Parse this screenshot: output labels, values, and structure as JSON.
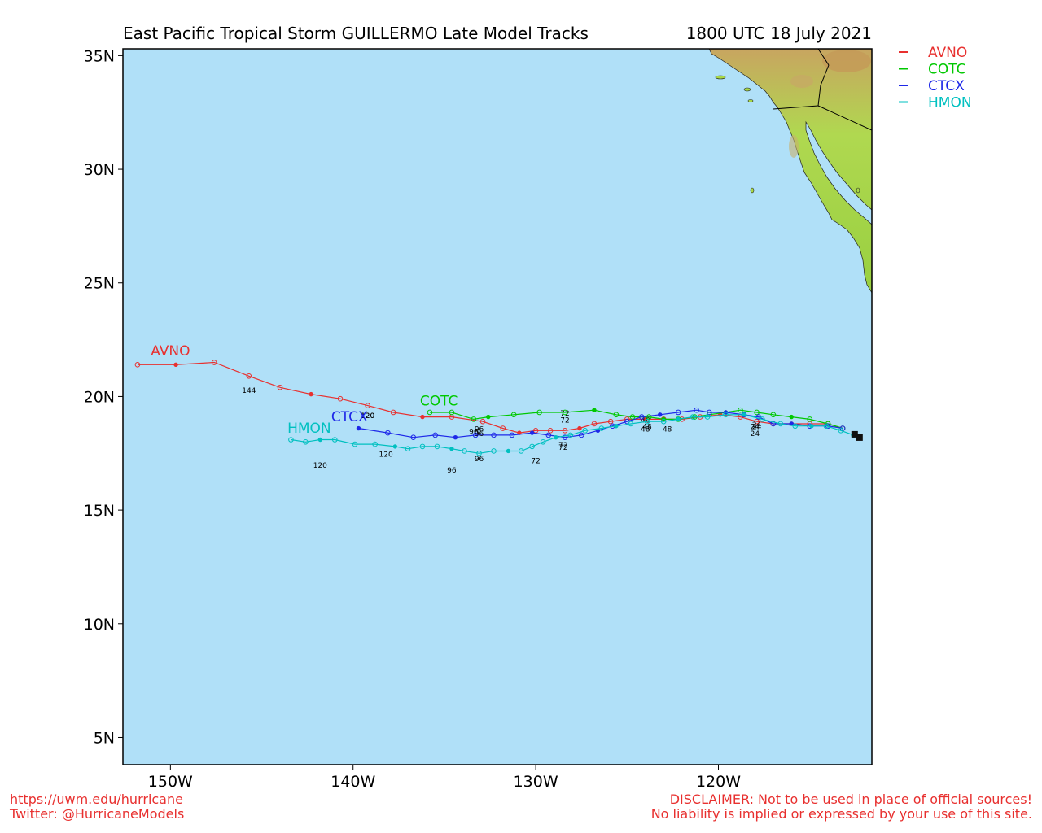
{
  "header": {
    "title": "East Pacific Tropical Storm GUILLERMO Late Model Tracks",
    "timestamp": "1800 UTC 18 July 2021"
  },
  "footer": {
    "url": "https://uwm.edu/hurricane",
    "twitter": "Twitter: @HurricaneModels",
    "disclaimer_1": "DISCLAIMER: Not to be used in place of official sources!",
    "disclaimer_2": "No liability is implied or expressed by your use of this site."
  },
  "colors": {
    "ocean": "#b0e0f8",
    "land_low": "#a0d840",
    "land_high": "#b89850",
    "avno": "#e8302f",
    "cotc": "#00c800",
    "ctcx": "#1e28e8",
    "hmon": "#00c0c0",
    "footer_text": "#e8302f"
  },
  "map": {
    "lon_range": [
      -152.6,
      -111.6
    ],
    "lat_range": [
      3.8,
      35.3
    ],
    "lon_ticks": [
      {
        "value": -150,
        "label": "150W"
      },
      {
        "value": -140,
        "label": "140W"
      },
      {
        "value": -130,
        "label": "130W"
      },
      {
        "value": -120,
        "label": "120W"
      }
    ],
    "lat_ticks": [
      {
        "value": 35,
        "label": "35N"
      },
      {
        "value": 30,
        "label": "30N"
      },
      {
        "value": 25,
        "label": "25N"
      },
      {
        "value": 20,
        "label": "20N"
      },
      {
        "value": 15,
        "label": "15N"
      },
      {
        "value": 10,
        "label": "10N"
      },
      {
        "value": 5,
        "label": "5N"
      }
    ],
    "initial_position": {
      "lon": -112.5,
      "lat": 18.3
    }
  },
  "legend": [
    {
      "name": "AVNO",
      "color": "#e8302f"
    },
    {
      "name": "COTC",
      "color": "#00c800"
    },
    {
      "name": "CTCX",
      "color": "#1e28e8"
    },
    {
      "name": "HMON",
      "color": "#00c0c0"
    }
  ],
  "tracks": [
    {
      "name": "AVNO",
      "color": "#e8302f",
      "points": [
        [
          -113.2,
          18.6
        ],
        [
          -114.0,
          18.8
        ],
        [
          -115.0,
          18.8
        ],
        [
          -116.0,
          18.8
        ],
        [
          -117.0,
          18.8
        ],
        [
          -117.9,
          18.9
        ],
        [
          -118.8,
          19.1
        ],
        [
          -119.9,
          19.2
        ],
        [
          -121.0,
          19.1
        ],
        [
          -122.0,
          19.0
        ],
        [
          -123.0,
          19.0
        ],
        [
          -124.0,
          19.0
        ],
        [
          -125.0,
          19.0
        ],
        [
          -125.9,
          18.9
        ],
        [
          -126.8,
          18.8
        ],
        [
          -127.6,
          18.6
        ],
        [
          -128.4,
          18.5
        ],
        [
          -129.2,
          18.5
        ],
        [
          -130.0,
          18.5
        ],
        [
          -130.9,
          18.4
        ],
        [
          -131.8,
          18.6
        ],
        [
          -132.9,
          18.9
        ],
        [
          -134.6,
          19.1
        ],
        [
          -136.2,
          19.1
        ],
        [
          -137.8,
          19.3
        ],
        [
          -139.2,
          19.6
        ],
        [
          -140.7,
          19.9
        ],
        [
          -142.3,
          20.1
        ],
        [
          -144.0,
          20.4
        ],
        [
          -145.7,
          20.9
        ],
        [
          -147.6,
          21.5
        ],
        [
          -149.7,
          21.4
        ],
        [
          -151.8,
          21.4
        ]
      ],
      "labels": [
        {
          "text": "24",
          "lon": -117.9,
          "lat": 18.8
        },
        {
          "text": "48",
          "lon": -124.0,
          "lat": 19.0
        },
        {
          "text": "72",
          "lon": -128.4,
          "lat": 19.3
        },
        {
          "text": "96",
          "lon": -133.1,
          "lat": 18.6
        },
        {
          "text": "120",
          "lon": -139.2,
          "lat": 19.2
        },
        {
          "text": "144",
          "lon": -145.7,
          "lat": 20.3
        }
      ],
      "model_label": {
        "text": "AVNO",
        "lon": -150.0,
        "lat": 21.8
      }
    },
    {
      "name": "COTC",
      "color": "#00c800",
      "points": [
        [
          -113.2,
          18.6
        ],
        [
          -114.0,
          18.8
        ],
        [
          -115.0,
          19.0
        ],
        [
          -116.0,
          19.1
        ],
        [
          -117.0,
          19.2
        ],
        [
          -117.9,
          19.3
        ],
        [
          -118.8,
          19.4
        ],
        [
          -119.6,
          19.3
        ],
        [
          -120.5,
          19.2
        ],
        [
          -121.3,
          19.1
        ],
        [
          -122.2,
          19.0
        ],
        [
          -123.0,
          19.0
        ],
        [
          -123.8,
          19.1
        ],
        [
          -124.7,
          19.1
        ],
        [
          -125.6,
          19.2
        ],
        [
          -126.8,
          19.4
        ],
        [
          -128.4,
          19.3
        ],
        [
          -129.8,
          19.3
        ],
        [
          -131.2,
          19.2
        ],
        [
          -132.6,
          19.1
        ],
        [
          -133.4,
          19.0
        ],
        [
          -134.6,
          19.3
        ],
        [
          -135.8,
          19.3
        ]
      ],
      "labels": [
        {
          "text": "24",
          "lon": -117.9,
          "lat": 18.7
        },
        {
          "text": "48",
          "lon": -122.8,
          "lat": 18.6
        },
        {
          "text": "72",
          "lon": -128.4,
          "lat": 19.0
        },
        {
          "text": "96",
          "lon": -133.4,
          "lat": 18.5
        }
      ],
      "model_label": {
        "text": "COTC",
        "lon": -135.3,
        "lat": 19.6
      }
    },
    {
      "name": "CTCX",
      "color": "#1e28e8",
      "points": [
        [
          -113.2,
          18.6
        ],
        [
          -114.0,
          18.7
        ],
        [
          -115.0,
          18.7
        ],
        [
          -116.0,
          18.8
        ],
        [
          -117.0,
          18.8
        ],
        [
          -117.8,
          19.1
        ],
        [
          -118.6,
          19.2
        ],
        [
          -119.6,
          19.3
        ],
        [
          -120.5,
          19.3
        ],
        [
          -121.2,
          19.4
        ],
        [
          -122.2,
          19.3
        ],
        [
          -123.2,
          19.2
        ],
        [
          -124.2,
          19.1
        ],
        [
          -125.0,
          18.9
        ],
        [
          -125.8,
          18.7
        ],
        [
          -126.6,
          18.5
        ],
        [
          -127.5,
          18.3
        ],
        [
          -128.4,
          18.2
        ],
        [
          -129.3,
          18.3
        ],
        [
          -130.2,
          18.4
        ],
        [
          -131.3,
          18.3
        ],
        [
          -132.3,
          18.3
        ],
        [
          -133.3,
          18.3
        ],
        [
          -134.4,
          18.2
        ],
        [
          -135.5,
          18.3
        ],
        [
          -136.7,
          18.2
        ],
        [
          -138.1,
          18.4
        ],
        [
          -139.7,
          18.6
        ]
      ],
      "labels": [
        {
          "text": "24",
          "lon": -118.0,
          "lat": 18.7
        },
        {
          "text": "48",
          "lon": -123.9,
          "lat": 18.7
        },
        {
          "text": "72",
          "lon": -128.5,
          "lat": 17.9
        },
        {
          "text": "96",
          "lon": -133.1,
          "lat": 18.4
        },
        {
          "text": "120",
          "lon": -139.2,
          "lat": 19.2
        }
      ],
      "model_label": {
        "text": "CTCX",
        "lon": -140.2,
        "lat": 18.9
      }
    },
    {
      "name": "HMON",
      "color": "#00c0c0",
      "points": [
        [
          -112.6,
          18.3
        ],
        [
          -113.3,
          18.5
        ],
        [
          -114.1,
          18.7
        ],
        [
          -114.9,
          18.7
        ],
        [
          -115.8,
          18.7
        ],
        [
          -116.6,
          18.8
        ],
        [
          -117.6,
          19.0
        ],
        [
          -118.6,
          19.2
        ],
        [
          -119.6,
          19.2
        ],
        [
          -120.6,
          19.1
        ],
        [
          -121.4,
          19.1
        ],
        [
          -122.2,
          19.0
        ],
        [
          -123.0,
          18.9
        ],
        [
          -123.9,
          18.9
        ],
        [
          -124.8,
          18.8
        ],
        [
          -125.6,
          18.7
        ],
        [
          -126.4,
          18.6
        ],
        [
          -127.3,
          18.5
        ],
        [
          -128.1,
          18.3
        ],
        [
          -128.9,
          18.2
        ],
        [
          -129.6,
          18.0
        ],
        [
          -130.2,
          17.8
        ],
        [
          -130.8,
          17.6
        ],
        [
          -131.5,
          17.6
        ],
        [
          -132.3,
          17.6
        ],
        [
          -133.1,
          17.5
        ],
        [
          -133.9,
          17.6
        ],
        [
          -134.6,
          17.7
        ],
        [
          -135.4,
          17.8
        ],
        [
          -136.2,
          17.8
        ],
        [
          -137.0,
          17.7
        ],
        [
          -137.7,
          17.8
        ],
        [
          -138.8,
          17.9
        ],
        [
          -139.9,
          17.9
        ],
        [
          -141.0,
          18.1
        ],
        [
          -141.8,
          18.1
        ],
        [
          -142.6,
          18.0
        ],
        [
          -143.4,
          18.1
        ]
      ],
      "labels": [
        {
          "text": "24",
          "lon": -118.0,
          "lat": 18.4
        },
        {
          "text": "48",
          "lon": -124.0,
          "lat": 18.6
        },
        {
          "text": "72",
          "lon": -128.5,
          "lat": 17.8
        },
        {
          "text": "72",
          "lon": -130.0,
          "lat": 17.2
        },
        {
          "text": "96",
          "lon": -133.1,
          "lat": 17.3
        },
        {
          "text": "96",
          "lon": -134.6,
          "lat": 16.8
        },
        {
          "text": "120",
          "lon": -138.2,
          "lat": 17.5
        },
        {
          "text": "120",
          "lon": -141.8,
          "lat": 17.0
        }
      ],
      "model_label": {
        "text": "HMON",
        "lon": -142.4,
        "lat": 18.4
      }
    }
  ]
}
